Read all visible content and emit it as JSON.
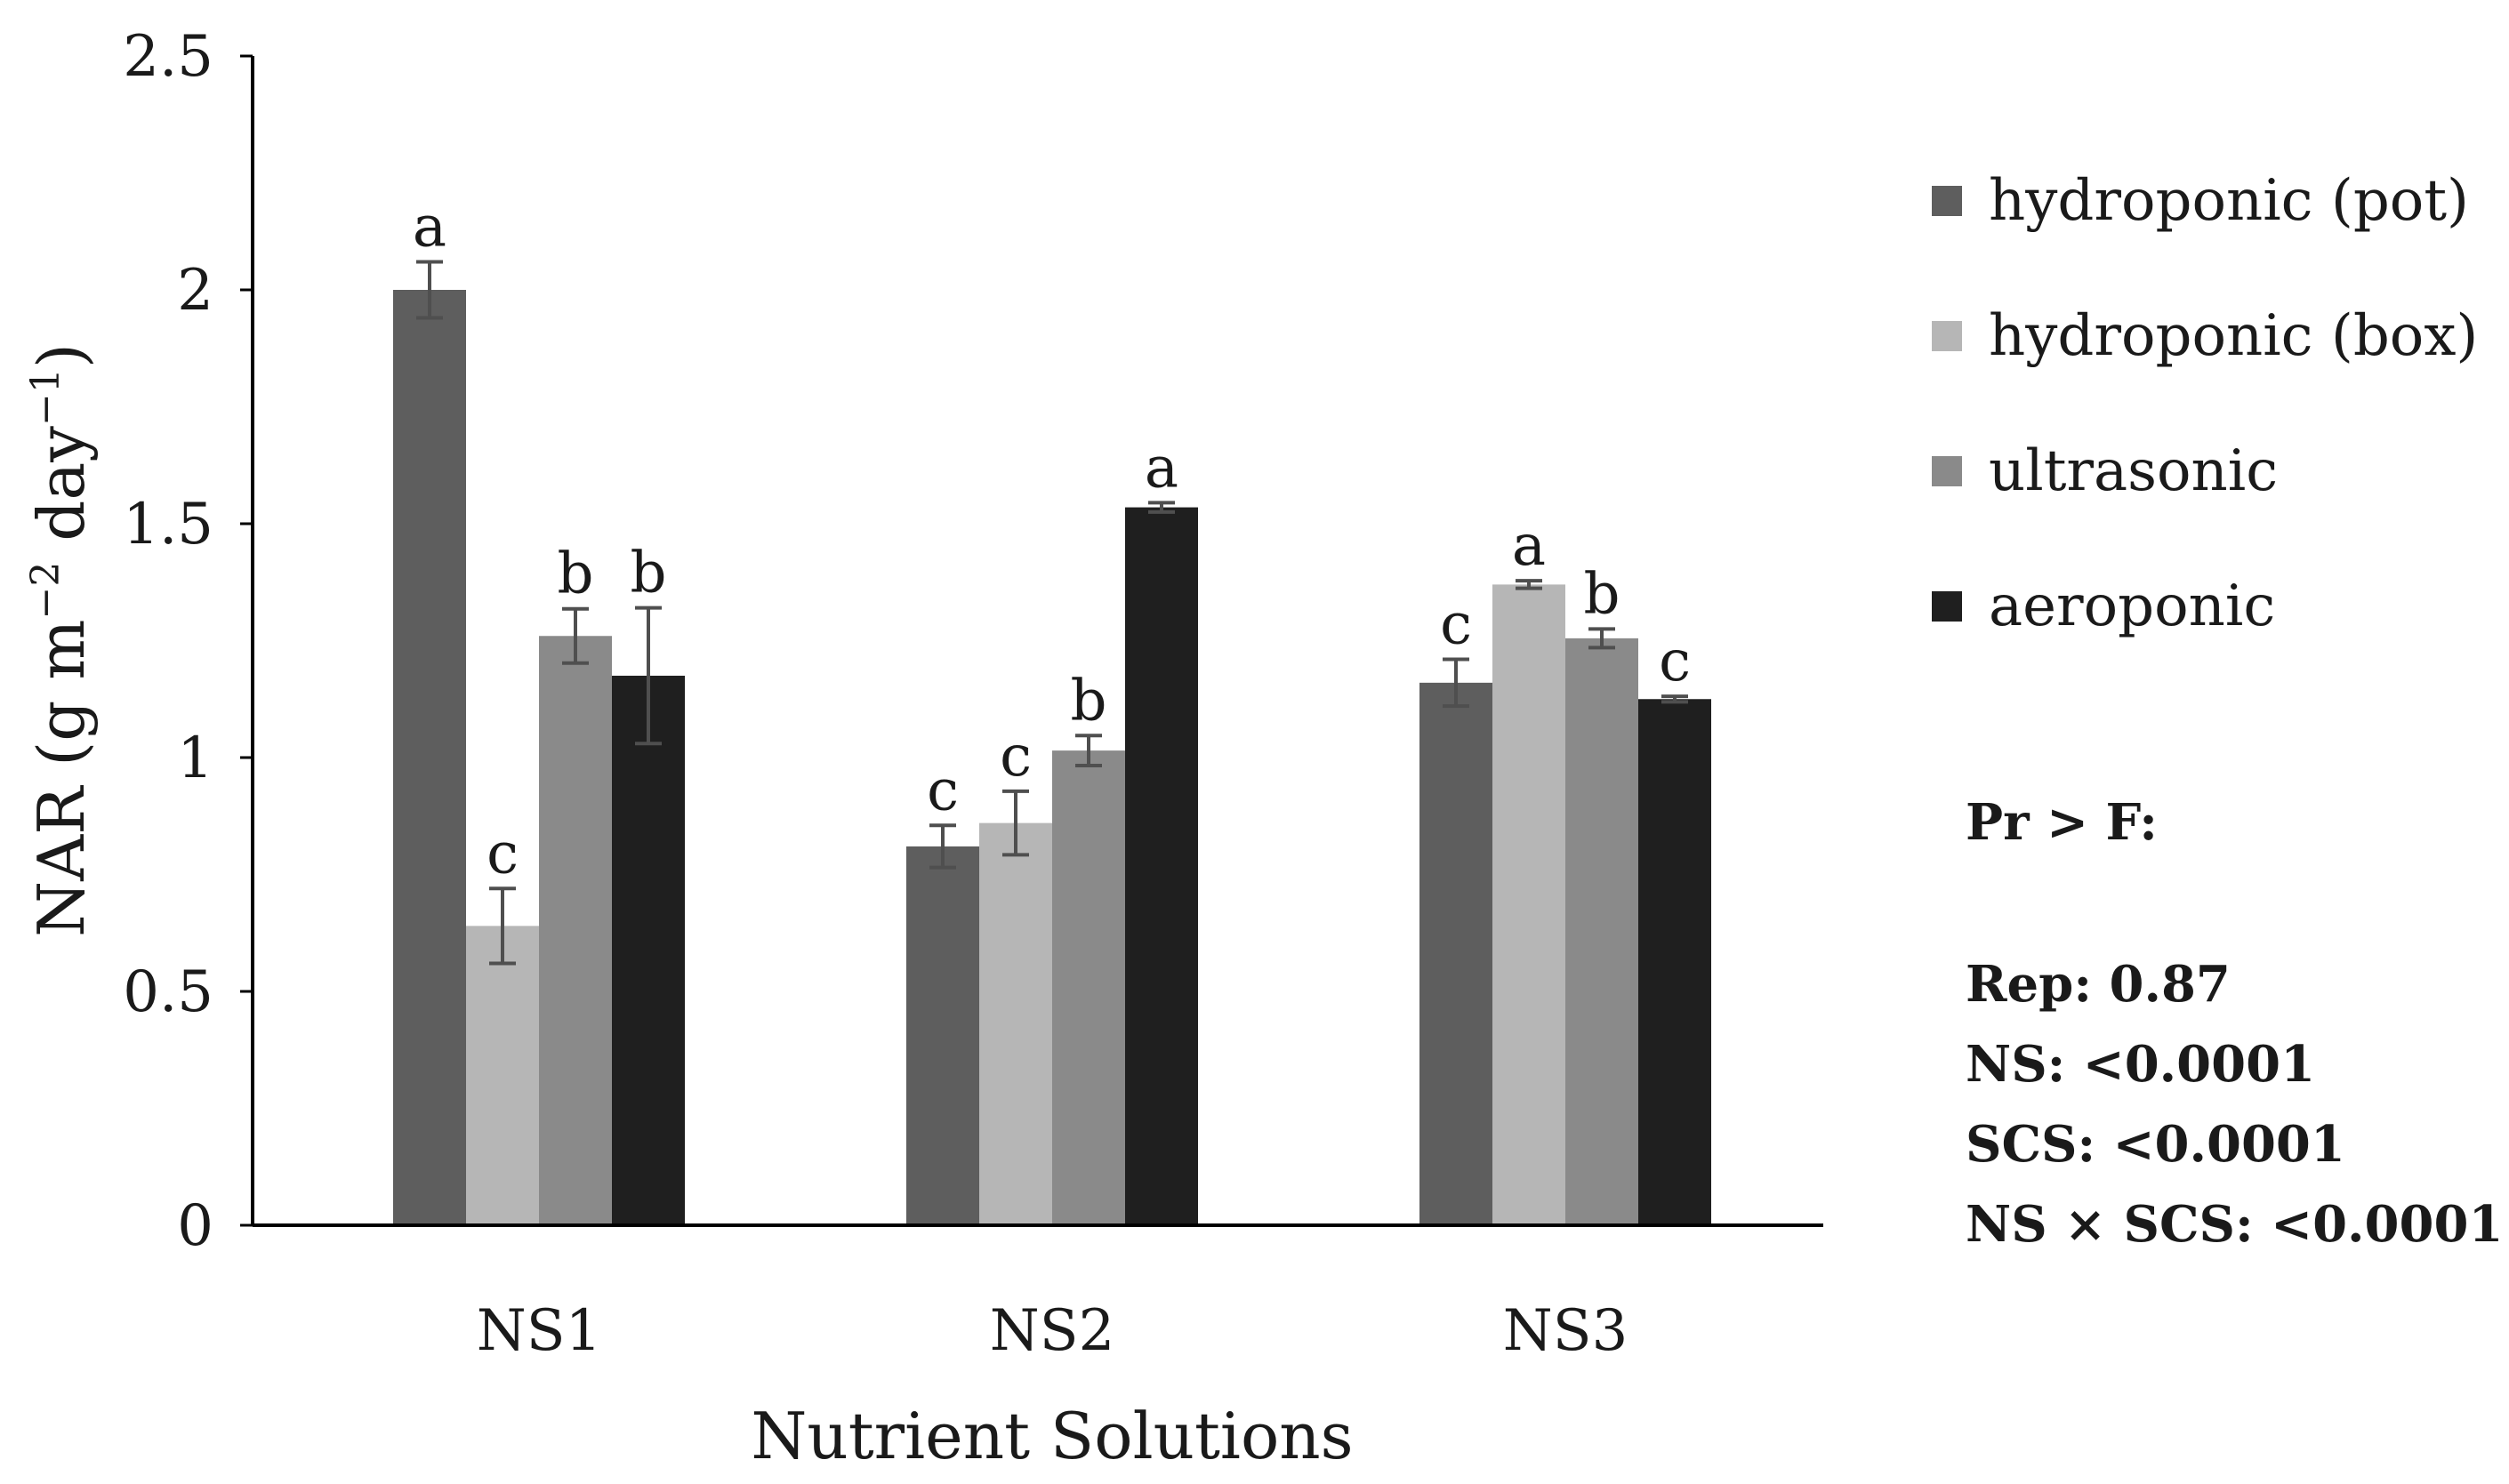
{
  "chart_data": {
    "type": "bar",
    "title": "",
    "xlabel": "Nutrient Solutions",
    "ylabel_main": "NAR (g m",
    "ylabel_exp1": "−2",
    "ylabel_mid": " day",
    "ylabel_exp2": "−1",
    "ylabel_end": ")",
    "ylim": [
      0,
      2.5
    ],
    "yticks": [
      "0",
      "0.5",
      "1",
      "1.5",
      "2",
      "2.5"
    ],
    "ytick_values": [
      0,
      0.5,
      1,
      1.5,
      2,
      2.5
    ],
    "categories": [
      "NS1",
      "NS2",
      "NS3"
    ],
    "series": [
      {
        "name": "hydroponic (pot)",
        "color": "#5e5e5e",
        "values": [
          2.0,
          0.81,
          1.16
        ],
        "errors": [
          0.06,
          0.045,
          0.05
        ],
        "letters": [
          "a",
          "c",
          "c"
        ]
      },
      {
        "name": "hydroponic (box)",
        "color": "#b6b6b6",
        "values": [
          0.64,
          0.86,
          1.37
        ],
        "errors": [
          0.08,
          0.068,
          0.008
        ],
        "letters": [
          "c",
          "c",
          "a"
        ]
      },
      {
        "name": "ultrasonic",
        "color": "#8a8a8a",
        "values": [
          1.26,
          1.015,
          1.255
        ],
        "errors": [
          0.058,
          0.032,
          0.02
        ],
        "letters": [
          "b",
          "b",
          "b"
        ]
      },
      {
        "name": "aeroponic",
        "color": "#1f1f1f",
        "values": [
          1.175,
          1.535,
          1.125
        ],
        "errors": [
          0.145,
          0.01,
          0.006
        ],
        "letters": [
          "b",
          "a",
          "c"
        ]
      }
    ],
    "legend_position": "right",
    "grid": false
  },
  "stats": {
    "heading": "Pr > F:",
    "lines": [
      "Rep: 0.87",
      "NS: <0.0001",
      "SCS: <0.0001",
      "NS × SCS: <0.0001"
    ]
  }
}
